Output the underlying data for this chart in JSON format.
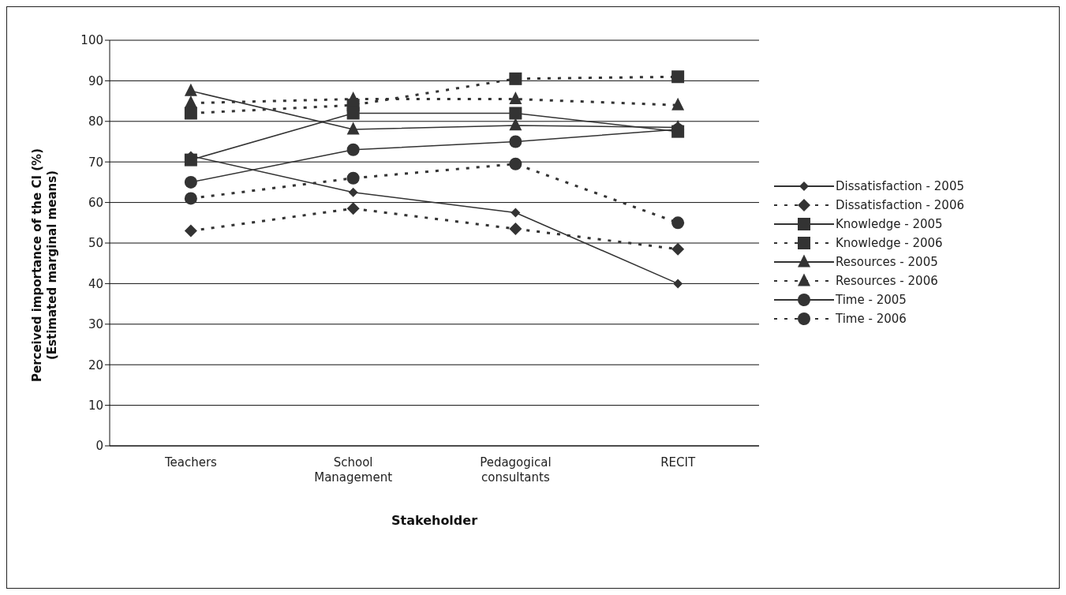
{
  "chart_data": {
    "type": "line",
    "xlabel": "Stakeholder",
    "ylabel": "Perceived importance of the CI (%)\n(Estimated marginal means)",
    "categories": [
      "Teachers",
      "School Management",
      "Pedagogical consultants",
      "RECIT"
    ],
    "series": [
      {
        "name": "Dissatisfaction - 2005",
        "color": "#333333",
        "marker": "diamond",
        "line_style": "solid",
        "values": [
          71.5,
          62.5,
          57.5,
          40
        ]
      },
      {
        "name": "Dissatisfaction - 2006",
        "color": "#333333",
        "marker": "diamond",
        "line_style": "dotted",
        "values": [
          53,
          58.5,
          53.5,
          48.5
        ]
      },
      {
        "name": "Knowledge - 2005",
        "color": "#333333",
        "marker": "square",
        "line_style": "solid",
        "values": [
          70.5,
          82,
          82,
          77.5
        ]
      },
      {
        "name": "Knowledge - 2006",
        "color": "#333333",
        "marker": "square",
        "line_style": "dotted",
        "values": [
          82,
          84,
          90.5,
          91
        ]
      },
      {
        "name": "Resources - 2005",
        "color": "#333333",
        "marker": "triangle",
        "line_style": "solid",
        "values": [
          87.5,
          78,
          79,
          78.5
        ]
      },
      {
        "name": "Resources - 2006",
        "color": "#333333",
        "marker": "triangle",
        "line_style": "dotted",
        "values": [
          84.5,
          85.5,
          85.5,
          84
        ]
      },
      {
        "name": "Time - 2005",
        "color": "#333333",
        "marker": "circle",
        "line_style": "solid",
        "values": [
          65,
          73,
          75,
          78
        ]
      },
      {
        "name": "Time - 2006",
        "color": "#333333",
        "marker": "circle",
        "line_style": "dotted",
        "values": [
          61,
          66,
          69.5,
          55
        ]
      }
    ],
    "ylim": [
      0,
      100
    ],
    "yticks": [
      0,
      10,
      20,
      30,
      40,
      50,
      60,
      70,
      80,
      90,
      100
    ],
    "grid": "y",
    "legend": "right"
  }
}
